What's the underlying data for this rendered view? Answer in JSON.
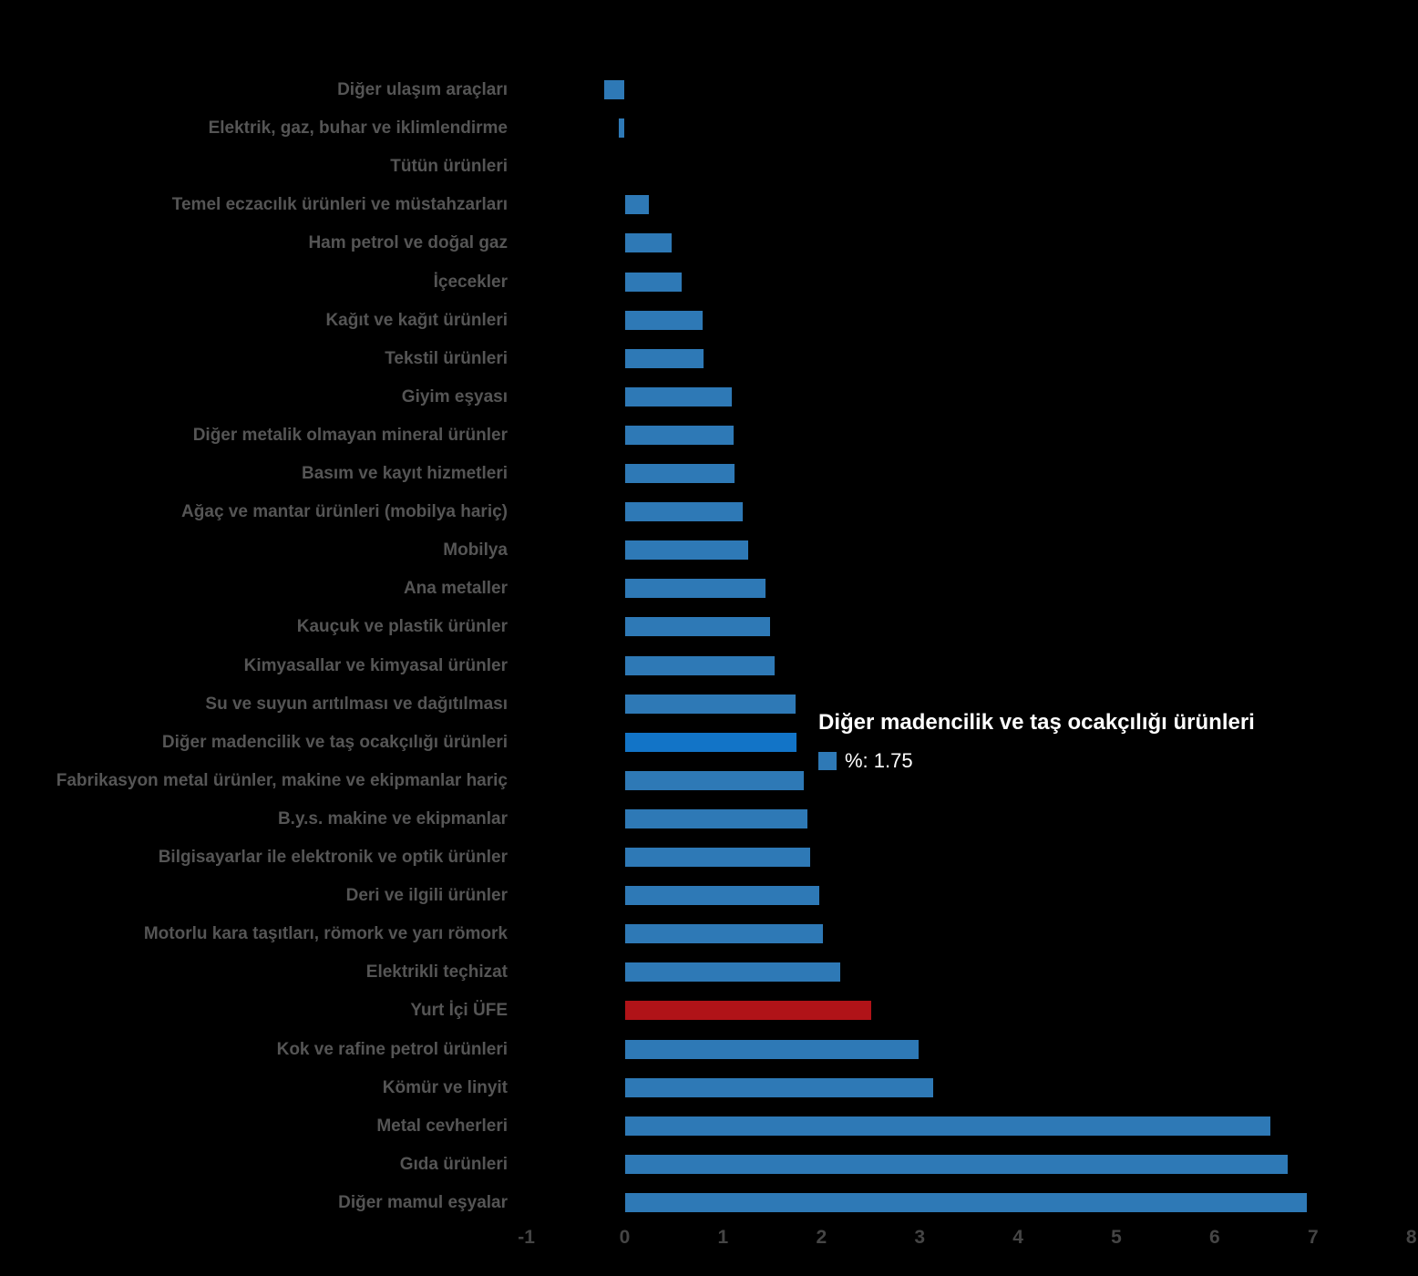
{
  "chart_data": {
    "type": "bar",
    "orientation": "horizontal",
    "title": "",
    "xlabel": "",
    "ylabel": "",
    "xlim": [
      -1,
      8
    ],
    "x_ticks": [
      -1,
      0,
      1,
      2,
      3,
      4,
      5,
      6,
      7,
      8
    ],
    "grid": false,
    "background_color": "#000000",
    "colors": {
      "bar": "#2E79B6",
      "bar_highlight": "#1274C7",
      "bar_emphasis": "#B01318",
      "category_label": "#555555",
      "axis_label": "#454545",
      "tooltip_text": "#ffffff"
    },
    "highlighted_index": 17,
    "emphasis_index": 24,
    "categories": [
      "Diğer ulaşım araçları",
      "Elektrik, gaz, buhar ve iklimlendirme",
      "Tütün ürünleri",
      "Temel eczacılık ürünleri ve müstahzarları",
      "Ham petrol ve doğal gaz",
      "İçecekler",
      "Kağıt ve kağıt ürünleri",
      "Tekstil ürünleri",
      "Giyim eşyası",
      "Diğer metalik olmayan mineral ürünler",
      "Basım ve kayıt hizmetleri",
      "Ağaç ve mantar ürünleri (mobilya hariç)",
      "Mobilya",
      "Ana metaller",
      "Kauçuk ve plastik ürünler",
      "Kimyasallar ve kimyasal ürünler",
      "Su ve suyun arıtılması ve dağıtılması",
      "Diğer madencilik ve taş ocakçılığı ürünleri",
      "Fabrikasyon metal ürünler, makine ve ekipmanlar hariç",
      "B.y.s. makine ve ekipmanlar",
      "Bilgisayarlar ile elektronik ve optik ürünler",
      "Deri ve ilgili ürünler",
      "Motorlu kara taşıtları, römork ve yarı römork",
      "Elektrikli teçhizat",
      "Yurt İçi ÜFE",
      "Kok ve rafine petrol ürünleri",
      "Kömür ve linyit",
      "Metal cevherleri",
      "Gıda ürünleri",
      "Diğer mamul eşyalar"
    ],
    "values": [
      -0.21,
      -0.06,
      0,
      0.25,
      0.48,
      0.58,
      0.79,
      0.8,
      1.09,
      1.11,
      1.12,
      1.2,
      1.26,
      1.43,
      1.48,
      1.52,
      1.74,
      1.75,
      1.82,
      1.86,
      1.89,
      1.98,
      2.02,
      2.19,
      2.51,
      2.99,
      3.14,
      6.57,
      6.74,
      6.94
    ]
  },
  "tooltip": {
    "title": "Diğer madencilik ve taş ocakçılığı ürünleri",
    "value_label": "%: 1.75"
  }
}
